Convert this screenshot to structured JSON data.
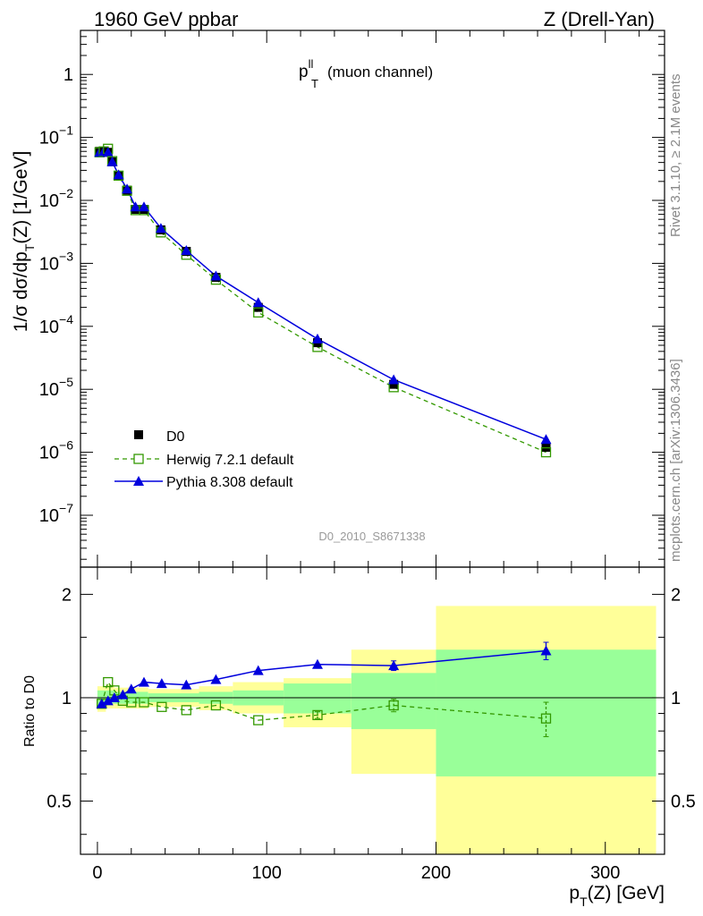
{
  "header": {
    "left": "1960 GeV ppbar",
    "right": "Z (Drell-Yan)"
  },
  "main_title": {
    "base": "p",
    "sup": "ll",
    "sub": "T",
    "text": "(muon channel)"
  },
  "y_axis": {
    "pre": "1/σ  dσ/dp",
    "sub": "T",
    "post": "(Z) [1/GeV]",
    "ticks": [
      {
        "mant": "10",
        "exp": "−7"
      },
      {
        "mant": "10",
        "exp": "−6"
      },
      {
        "mant": "10",
        "exp": "−5"
      },
      {
        "mant": "10",
        "exp": "−4"
      },
      {
        "mant": "10",
        "exp": "−3"
      },
      {
        "mant": "10",
        "exp": "−2"
      },
      {
        "mant": "10",
        "exp": "−1"
      },
      {
        "mant": "1",
        "exp": ""
      }
    ]
  },
  "ratio_axis": {
    "label": "Ratio to D0",
    "ticks": [
      "0.5",
      "1",
      "2"
    ]
  },
  "x_axis": {
    "pre": "p",
    "sub": "T",
    "post": "(Z) [GeV]",
    "ticks": [
      "0",
      "100",
      "200",
      "300"
    ]
  },
  "side_text": {
    "rivet": "Rivet 3.1.10, ≥ 2.1M events",
    "mcplots": "mcplots.cern.ch [arXiv:1306.3436]"
  },
  "analysis_id": "D0_2010_S8671338",
  "legend": {
    "data": "D0",
    "herwig": "Herwig 7.2.1 default",
    "pythia": "Pythia 8.308 default"
  },
  "colors": {
    "data": "#000000",
    "herwig": "#339900",
    "pythia": "#0000dd",
    "band_outer": "#ffff99",
    "band_inner": "#99ff99",
    "side_text": "#888888"
  },
  "chart_data": {
    "type": "scatter",
    "x_scale": "linear",
    "y_scale": "log",
    "xlim": [
      -10,
      335
    ],
    "ylim_main": [
      1.5e-08,
      5.0
    ],
    "ylim_ratio": [
      0.35,
      2.4
    ],
    "ratio_y_scale": "log",
    "bins": [
      {
        "lo": 0,
        "hi": 2.5,
        "x": 1.25
      },
      {
        "lo": 2.5,
        "hi": 5,
        "x": 3.75
      },
      {
        "lo": 5,
        "hi": 7.5,
        "x": 6.25
      },
      {
        "lo": 7.5,
        "hi": 10,
        "x": 8.75
      },
      {
        "lo": 10,
        "hi": 15,
        "x": 12.5
      },
      {
        "lo": 15,
        "hi": 20,
        "x": 17.5
      },
      {
        "lo": 20,
        "hi": 25,
        "x": 22.5
      },
      {
        "lo": 25,
        "hi": 30,
        "x": 27.5
      },
      {
        "lo": 30,
        "hi": 45,
        "x": 37.5
      },
      {
        "lo": 45,
        "hi": 60,
        "x": 52.5
      },
      {
        "lo": 60,
        "hi": 80,
        "x": 70
      },
      {
        "lo": 80,
        "hi": 110,
        "x": 95
      },
      {
        "lo": 110,
        "hi": 150,
        "x": 130
      },
      {
        "lo": 150,
        "hi": 200,
        "x": 175
      },
      {
        "lo": 200,
        "hi": 330,
        "x": 265
      }
    ],
    "series": [
      {
        "name": "D0",
        "values": [
          0.06,
          0.06,
          0.058,
          0.041,
          0.025,
          0.0145,
          0.0072,
          0.0072,
          0.0034,
          0.00155,
          0.0006,
          0.0002,
          5.5e-05,
          1.2e-05,
          1.2e-06
        ]
      },
      {
        "name": "Herwig 7.2.1 default",
        "values": [
          0.058,
          0.06,
          0.066,
          0.042,
          0.0247,
          0.0142,
          0.007,
          0.007,
          0.0031,
          0.00137,
          0.00055,
          0.000166,
          4.7e-05,
          1.08e-05,
          1e-06
        ]
      },
      {
        "name": "Pythia 8.308 default",
        "values": [
          0.058,
          0.06,
          0.058,
          0.041,
          0.0255,
          0.0152,
          0.0079,
          0.0079,
          0.0036,
          0.0016,
          0.00063,
          0.000238,
          6.3e-05,
          1.42e-05,
          1.6e-06
        ]
      }
    ],
    "ratios": [
      {
        "name": "Herwig 7.2.1 default",
        "x": [
          2.5,
          6.25,
          10,
          15,
          20,
          27.5,
          38,
          52.5,
          70,
          95,
          130,
          175,
          265
        ],
        "values": [
          0.96,
          1.11,
          1.05,
          0.98,
          0.97,
          0.97,
          0.94,
          0.92,
          0.95,
          0.86,
          0.89,
          0.95,
          0.87
        ],
        "err": [
          0,
          0,
          0,
          0,
          0,
          0,
          0,
          0,
          0,
          0,
          0.02,
          0.04,
          0.1
        ]
      },
      {
        "name": "Pythia 8.308 default",
        "x": [
          2.5,
          6.25,
          10,
          15,
          20,
          27.5,
          38,
          52.5,
          70,
          95,
          130,
          175,
          265
        ],
        "values": [
          0.96,
          0.98,
          1.0,
          1.02,
          1.06,
          1.11,
          1.1,
          1.09,
          1.13,
          1.2,
          1.25,
          1.24,
          1.37
        ],
        "err": [
          0,
          0,
          0,
          0,
          0,
          0,
          0,
          0,
          0,
          0,
          0,
          0.04,
          0.08
        ]
      }
    ],
    "bands": [
      {
        "lo": 0,
        "hi": 5,
        "outer": [
          0.91,
          1.08
        ],
        "inner": [
          0.95,
          1.05
        ]
      },
      {
        "lo": 5,
        "hi": 10,
        "outer": [
          0.93,
          1.09
        ],
        "inner": [
          0.96,
          1.05
        ]
      },
      {
        "lo": 10,
        "hi": 30,
        "outer": [
          0.93,
          1.07
        ],
        "inner": [
          0.96,
          1.04
        ]
      },
      {
        "lo": 30,
        "hi": 60,
        "outer": [
          0.94,
          1.06
        ],
        "inner": [
          0.97,
          1.03
        ]
      },
      {
        "lo": 60,
        "hi": 80,
        "outer": [
          0.92,
          1.08
        ],
        "inner": [
          0.96,
          1.04
        ]
      },
      {
        "lo": 80,
        "hi": 110,
        "outer": [
          0.9,
          1.11
        ],
        "inner": [
          0.95,
          1.05
        ]
      },
      {
        "lo": 110,
        "hi": 150,
        "outer": [
          0.82,
          1.14
        ],
        "inner": [
          0.9,
          1.1
        ]
      },
      {
        "lo": 150,
        "hi": 200,
        "outer": [
          0.6,
          1.38
        ],
        "inner": [
          0.81,
          1.18
        ]
      },
      {
        "lo": 200,
        "hi": 330,
        "outer": [
          0.33,
          1.85
        ],
        "inner": [
          0.59,
          1.38
        ]
      }
    ]
  }
}
